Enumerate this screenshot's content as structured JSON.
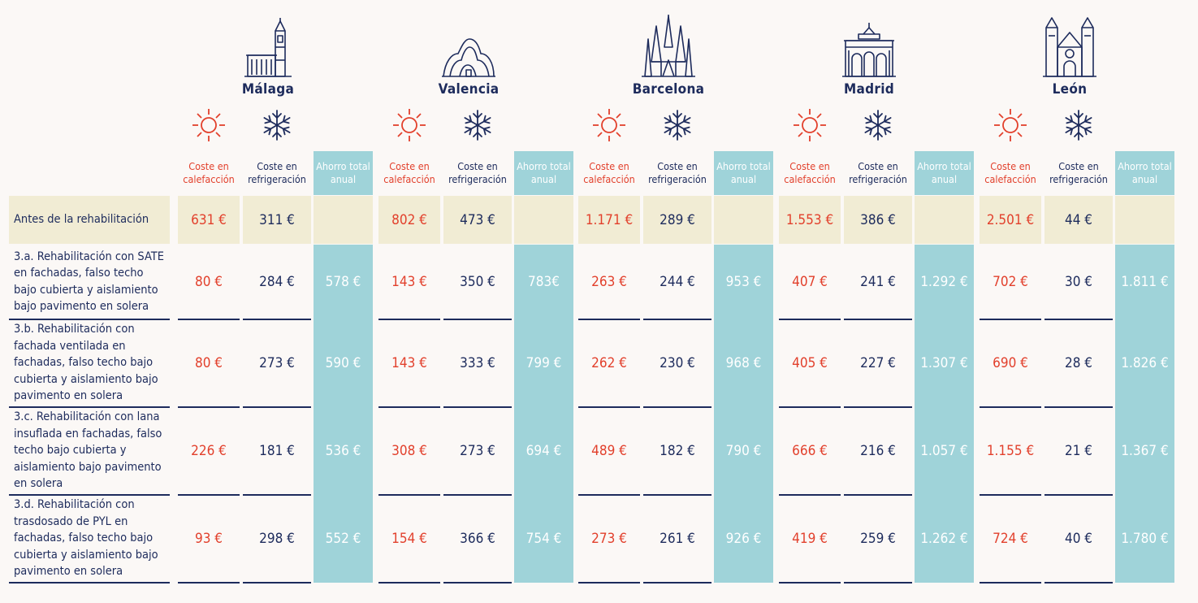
{
  "cities": [
    {
      "name": "Málaga",
      "icon": "malaga-building-icon"
    },
    {
      "name": "Valencia",
      "icon": "valencia-building-icon"
    },
    {
      "name": "Barcelona",
      "icon": "barcelona-cathedral-icon"
    },
    {
      "name": "Madrid",
      "icon": "madrid-gate-icon"
    },
    {
      "name": "León",
      "icon": "leon-cathedral-icon"
    }
  ],
  "headers": {
    "heating": "Coste en calefacción",
    "cooling": "Coste en refrigeración",
    "savings": "Ahorro total anual"
  },
  "colors": {
    "heating": "#e2402c",
    "cooling": "#1d2b5c",
    "savings_bg": "#9fd3d9",
    "before_bg": "#f1ecd4"
  },
  "rows": [
    {
      "label": "Antes de la rehabilitación",
      "values": [
        [
          "631 €",
          "311 €",
          ""
        ],
        [
          "802 €",
          "473 €",
          ""
        ],
        [
          "1.171 €",
          "289 €",
          ""
        ],
        [
          "1.553 €",
          "386 €",
          ""
        ],
        [
          "2.501 €",
          "44 €",
          ""
        ]
      ]
    },
    {
      "label": "3.a. Rehabilitación con SATE en fachadas, falso techo bajo cubierta y aislamiento bajo pavimento en solera",
      "values": [
        [
          "80 €",
          "284 €",
          "578 €"
        ],
        [
          "143 €",
          "350 €",
          "783€"
        ],
        [
          "263 €",
          "244 €",
          "953 €"
        ],
        [
          "407 €",
          "241 €",
          "1.292 €"
        ],
        [
          "702 €",
          "30 €",
          "1.811 €"
        ]
      ]
    },
    {
      "label": "3.b. Rehabilitación con fachada ventilada en fachadas, falso techo bajo cubierta y aislamiento bajo pavimento en solera",
      "values": [
        [
          "80 €",
          "273 €",
          "590 €"
        ],
        [
          "143 €",
          "333 €",
          "799 €"
        ],
        [
          "262 €",
          "230 €",
          "968 €"
        ],
        [
          "405 €",
          "227 €",
          "1.307 €"
        ],
        [
          "690 €",
          "28 €",
          "1.826 €"
        ]
      ]
    },
    {
      "label": "3.c. Rehabilitación con lana insuflada en fachadas, falso techo bajo cubierta y aislamiento bajo pavimento en solera",
      "values": [
        [
          "226 €",
          "181 €",
          "536 €"
        ],
        [
          "308 €",
          "273 €",
          "694 €"
        ],
        [
          "489 €",
          "182 €",
          "790 €"
        ],
        [
          "666 €",
          "216 €",
          "1.057 €"
        ],
        [
          "1.155 €",
          "21 €",
          "1.367 €"
        ]
      ]
    },
    {
      "label": "3.d. Rehabilitación con trasdosado de PYL en fachadas, falso techo bajo cubierta y aislamiento bajo pavimento en solera",
      "values": [
        [
          "93 €",
          "298 €",
          "552 €"
        ],
        [
          "154 €",
          "366 €",
          "754 €"
        ],
        [
          "273 €",
          "261 €",
          "926 €"
        ],
        [
          "419 €",
          "259 €",
          "1.262 €"
        ],
        [
          "724 €",
          "40 €",
          "1.780 €"
        ]
      ]
    }
  ]
}
